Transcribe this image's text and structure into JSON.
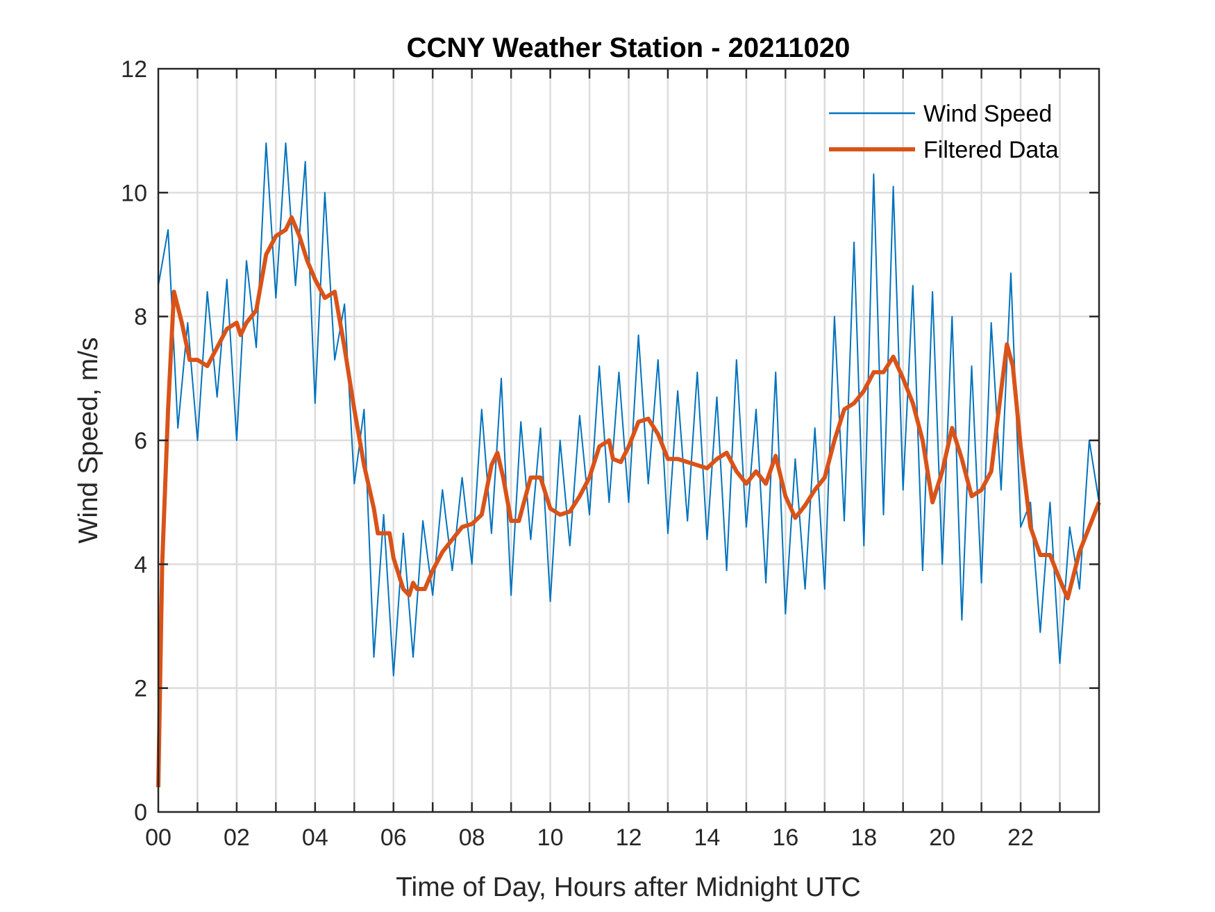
{
  "chart_data": {
    "type": "line",
    "title": "CCNY Weather Station - 20211020",
    "xlabel": "Time of Day, Hours after Midnight UTC",
    "ylabel": "Wind Speed, m/s",
    "xlim": [
      0,
      24
    ],
    "ylim": [
      0,
      12
    ],
    "xticks": [
      0,
      2,
      4,
      6,
      8,
      10,
      12,
      14,
      16,
      18,
      20,
      22
    ],
    "xtick_labels": [
      "00",
      "02",
      "04",
      "06",
      "08",
      "10",
      "12",
      "14",
      "16",
      "18",
      "20",
      "22"
    ],
    "yticks": [
      0,
      2,
      4,
      6,
      8,
      10,
      12
    ],
    "ytick_labels": [
      "0",
      "2",
      "4",
      "6",
      "8",
      "10",
      "12"
    ],
    "grid": true,
    "legend_position": "top-right",
    "series": [
      {
        "name": "Wind Speed",
        "color": "#0072BD",
        "x_step_hours": 0.25,
        "values": [
          8.5,
          9.4,
          6.2,
          7.9,
          6.0,
          8.4,
          6.7,
          8.6,
          6.0,
          8.9,
          7.5,
          10.8,
          8.3,
          10.8,
          8.5,
          10.5,
          6.6,
          10.0,
          7.3,
          8.2,
          5.3,
          6.5,
          2.5,
          4.8,
          2.2,
          4.5,
          2.5,
          4.7,
          3.5,
          5.2,
          3.9,
          5.4,
          4.0,
          6.5,
          4.5,
          7.0,
          3.5,
          6.3,
          4.4,
          6.2,
          3.4,
          6.0,
          4.3,
          6.4,
          4.8,
          7.2,
          5.0,
          7.1,
          5.0,
          7.7,
          5.3,
          7.3,
          4.5,
          6.8,
          4.7,
          7.1,
          4.4,
          6.7,
          3.9,
          7.3,
          4.6,
          6.5,
          3.7,
          7.1,
          3.2,
          5.7,
          3.6,
          6.2,
          3.6,
          8.0,
          4.7,
          9.2,
          4.3,
          10.3,
          4.8,
          10.1,
          5.2,
          8.5,
          3.9,
          8.4,
          4.0,
          8.0,
          3.1,
          7.2,
          3.7,
          7.9,
          5.2,
          8.7,
          4.6,
          5.0,
          2.9,
          5.0,
          2.4,
          4.6,
          3.6,
          6.0,
          5.0
        ]
      },
      {
        "name": "Filtered Data",
        "color": "#D95319",
        "x": [
          0,
          0.1,
          0.25,
          0.4,
          0.6,
          0.8,
          1.0,
          1.25,
          1.5,
          1.75,
          2.0,
          2.1,
          2.25,
          2.5,
          2.75,
          3.0,
          3.25,
          3.4,
          3.6,
          3.8,
          4.0,
          4.25,
          4.5,
          4.75,
          5.0,
          5.25,
          5.5,
          5.6,
          5.9,
          6.0,
          6.25,
          6.4,
          6.5,
          6.6,
          6.8,
          7.0,
          7.25,
          7.5,
          7.75,
          8.0,
          8.25,
          8.5,
          8.65,
          8.8,
          9.0,
          9.2,
          9.5,
          9.75,
          10.0,
          10.25,
          10.5,
          10.75,
          11.0,
          11.25,
          11.5,
          11.6,
          11.8,
          12.0,
          12.25,
          12.5,
          12.75,
          13.0,
          13.25,
          13.5,
          13.75,
          14.0,
          14.25,
          14.5,
          14.75,
          15.0,
          15.25,
          15.5,
          15.75,
          16.0,
          16.25,
          16.5,
          16.75,
          17.0,
          17.25,
          17.5,
          17.75,
          18.0,
          18.25,
          18.5,
          18.75,
          19.0,
          19.25,
          19.5,
          19.75,
          20.0,
          20.25,
          20.5,
          20.75,
          21.0,
          21.25,
          21.5,
          21.65,
          21.8,
          22.0,
          22.25,
          22.5,
          22.75,
          23.0,
          23.2,
          23.5,
          23.75,
          24.0
        ],
        "values": [
          0.4,
          4.0,
          6.5,
          8.4,
          7.9,
          7.3,
          7.3,
          7.2,
          7.5,
          7.8,
          7.9,
          7.7,
          7.9,
          8.1,
          9.0,
          9.3,
          9.4,
          9.6,
          9.3,
          8.9,
          8.6,
          8.3,
          8.4,
          7.5,
          6.5,
          5.6,
          4.9,
          4.5,
          4.5,
          4.1,
          3.6,
          3.5,
          3.7,
          3.6,
          3.6,
          3.9,
          4.2,
          4.4,
          4.6,
          4.65,
          4.8,
          5.6,
          5.8,
          5.4,
          4.7,
          4.7,
          5.4,
          5.4,
          4.9,
          4.8,
          4.85,
          5.1,
          5.4,
          5.9,
          6.0,
          5.7,
          5.65,
          5.9,
          6.3,
          6.35,
          6.1,
          5.7,
          5.7,
          5.65,
          5.6,
          5.55,
          5.7,
          5.8,
          5.5,
          5.3,
          5.5,
          5.3,
          5.75,
          5.1,
          4.75,
          4.95,
          5.2,
          5.4,
          6.0,
          6.5,
          6.6,
          6.8,
          7.1,
          7.1,
          7.35,
          7.0,
          6.6,
          6.0,
          5.0,
          5.5,
          6.2,
          5.7,
          5.1,
          5.2,
          5.5,
          6.8,
          7.55,
          7.2,
          5.9,
          4.6,
          4.15,
          4.15,
          3.75,
          3.45,
          4.2,
          4.6,
          5.0
        ]
      }
    ]
  }
}
